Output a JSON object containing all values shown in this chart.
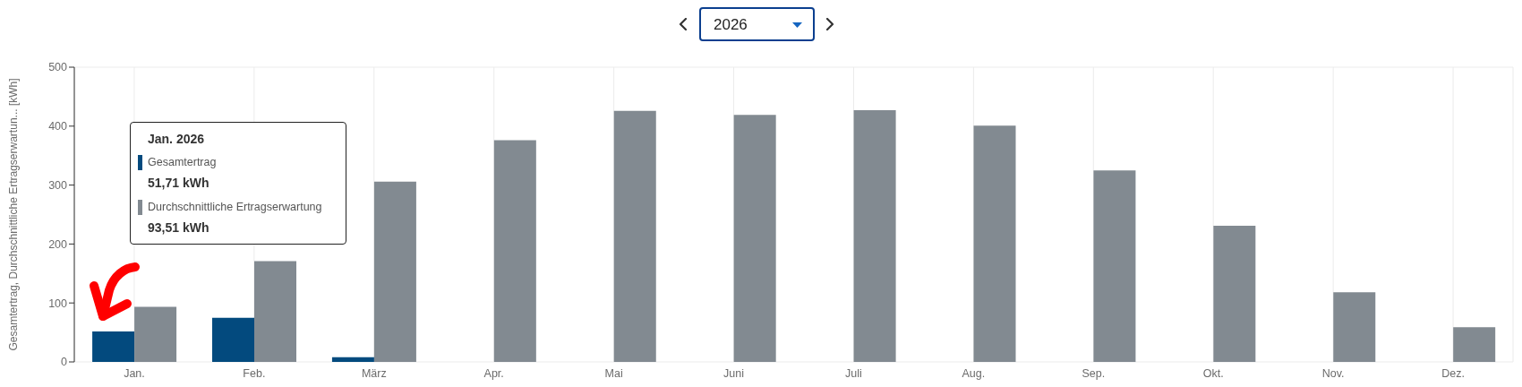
{
  "chart_data": {
    "type": "bar",
    "title": "2026",
    "ylabel": "Gesamtertrag, Durchschnittliche Ertragserwartun... [kWh]",
    "categories": [
      "Jan.",
      "Feb.",
      "März",
      "Apr.",
      "Mai",
      "Juni",
      "Juli",
      "Aug.",
      "Sep.",
      "Okt.",
      "Nov.",
      "Dez."
    ],
    "series": [
      {
        "name": "Gesamtertrag",
        "color": "#034a7e",
        "values": [
          51.71,
          75,
          8,
          null,
          null,
          null,
          null,
          null,
          null,
          null,
          null,
          null
        ]
      },
      {
        "name": "Durchschnittliche Ertragserwartung",
        "color": "#828a91",
        "values": [
          93.51,
          171,
          306,
          376,
          426,
          419,
          427,
          401,
          325,
          231,
          118,
          59
        ]
      }
    ],
    "ylim": [
      0,
      500
    ],
    "yticks": [
      0,
      100,
      200,
      300,
      400,
      500
    ],
    "grid": true,
    "legend": "top left",
    "annotations": [
      "Jan. 2026",
      "51,71 kWh",
      "93,51 kWh"
    ]
  }
}
